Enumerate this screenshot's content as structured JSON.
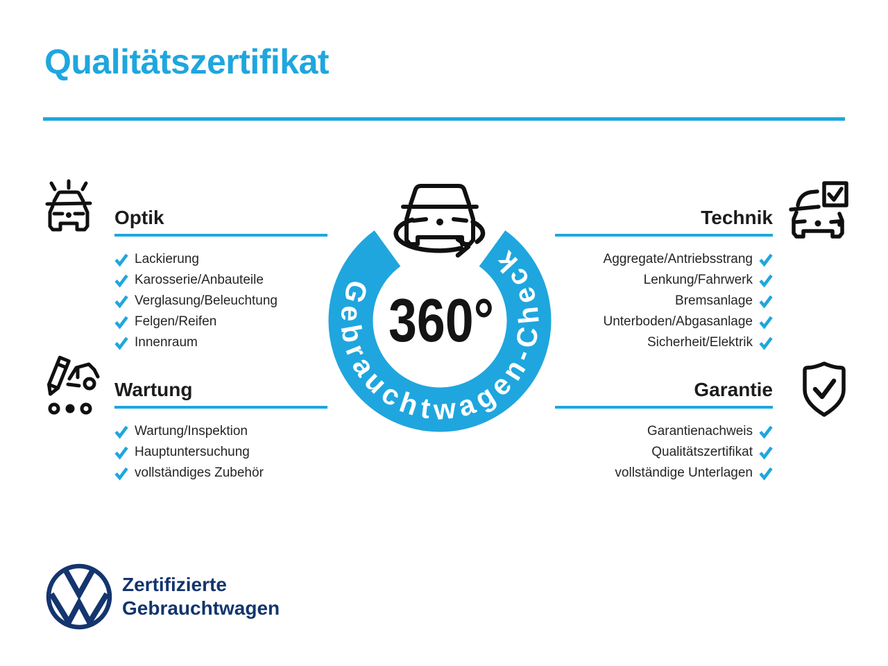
{
  "title": "Qualitätszertifikat",
  "badge": {
    "degrees": "360°",
    "ring_label": "Gebrauchtwagen-Check"
  },
  "sections": [
    {
      "title": "Optik",
      "items": [
        "Lackierung",
        "Karosserie/Anbauteile",
        "Verglasung/Beleuchtung",
        "Felgen/Reifen",
        "Innenraum"
      ]
    },
    {
      "title": "Technik",
      "items": [
        "Aggregate/Antriebsstrang",
        "Lenkung/Fahrwerk",
        "Bremsanlage",
        "Unterboden/Abgasanlage",
        "Sicherheit/Elektrik"
      ]
    },
    {
      "title": "Wartung",
      "items": [
        "Wartung/Inspektion",
        "Hauptuntersuchung",
        "vollständiges Zubehör"
      ]
    },
    {
      "title": "Garantie",
      "items": [
        "Garantienachweis",
        "Qualitätszertifikat",
        "vollständige Unterlagen"
      ]
    }
  ],
  "footer": {
    "line1": "Zertifizierte",
    "line2": "Gebrauchtwagen"
  },
  "colors": {
    "brand_blue": "#1fa6de",
    "navy": "#14356e",
    "text_dark": "#1c1c1c",
    "icon_black": "#101010",
    "check_blue": "#1fa6de"
  }
}
